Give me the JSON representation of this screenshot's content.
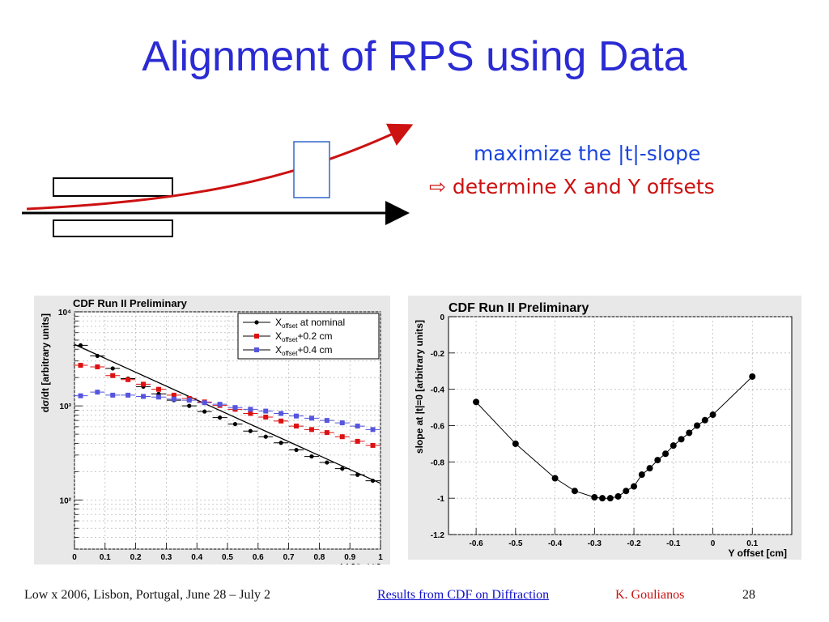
{
  "slide": {
    "title": "Alignment of RPS using Data",
    "note_line1": "maximize the |t|-slope",
    "note_arrow": "⇨",
    "note_line2": "determine X and Y offsets"
  },
  "footer": {
    "conference": "Low x 2006, Lisbon, Portugal, June 28 – July 2",
    "link": "Results from CDF on Diffraction",
    "author": "K. Goulianos",
    "page": "28"
  },
  "colors": {
    "title": "#2b2bd4",
    "note1": "#1a44dd",
    "note2": "#cc1111",
    "track": "#cc1111",
    "series_nominal": "#000000",
    "series_02": "#dd1111",
    "series_04": "#5555dd"
  },
  "chart_data": [
    {
      "type": "line",
      "title": "CDF Run II Preliminary",
      "xlabel": "|t| [GeV²]",
      "ylabel": "dσ/dt [arbitrary units]",
      "xlim": [
        0,
        1
      ],
      "ylim": [
        30,
        10000
      ],
      "yscale": "log",
      "xticks": [
        0,
        0.1,
        0.2,
        0.3,
        0.4,
        0.5,
        0.6,
        0.7,
        0.8,
        0.9,
        1
      ],
      "yticks": [
        {
          "value": 10000,
          "label": "10⁴"
        },
        {
          "value": 1000,
          "label": "10³"
        },
        {
          "value": 100,
          "label": "10²"
        }
      ],
      "grid": true,
      "legend_position": "top-right",
      "series": [
        {
          "name": "X_offset at nominal",
          "legend_main": "X",
          "legend_sub": "offset",
          "legend_rest": " at nominal",
          "color": "#000000",
          "marker": "circle",
          "x": [
            0.02,
            0.075,
            0.125,
            0.175,
            0.225,
            0.275,
            0.325,
            0.375,
            0.425,
            0.475,
            0.525,
            0.575,
            0.625,
            0.675,
            0.725,
            0.775,
            0.825,
            0.875,
            0.925,
            0.975
          ],
          "y": [
            4400,
            3400,
            2500,
            1950,
            1600,
            1340,
            1150,
            1000,
            870,
            750,
            640,
            540,
            470,
            405,
            340,
            290,
            250,
            215,
            185,
            160
          ],
          "fit_start": 4500,
          "fit_end": 150
        },
        {
          "name": "X_offset+0.2 cm",
          "legend_main": "X",
          "legend_sub": "offset",
          "legend_rest": "+0.2 cm",
          "color": "#dd1111",
          "marker": "square",
          "x": [
            0.02,
            0.075,
            0.125,
            0.175,
            0.225,
            0.275,
            0.325,
            0.375,
            0.425,
            0.475,
            0.525,
            0.575,
            0.625,
            0.675,
            0.725,
            0.775,
            0.825,
            0.875,
            0.925,
            0.975
          ],
          "y": [
            2700,
            2600,
            2100,
            1900,
            1700,
            1500,
            1300,
            1200,
            1100,
            1010,
            920,
            830,
            760,
            690,
            610,
            560,
            520,
            470,
            420,
            380
          ]
        },
        {
          "name": "X_offset+0.4 cm",
          "legend_main": "X",
          "legend_sub": "offset",
          "legend_rest": "+0.4 cm",
          "color": "#5555dd",
          "marker": "square",
          "x": [
            0.02,
            0.075,
            0.125,
            0.175,
            0.225,
            0.275,
            0.325,
            0.375,
            0.425,
            0.475,
            0.525,
            0.575,
            0.625,
            0.675,
            0.725,
            0.775,
            0.825,
            0.875,
            0.925,
            0.975
          ],
          "y": [
            1280,
            1400,
            1300,
            1300,
            1260,
            1240,
            1180,
            1150,
            1080,
            1040,
            960,
            920,
            880,
            830,
            780,
            740,
            700,
            660,
            610,
            560
          ]
        }
      ]
    },
    {
      "type": "line",
      "title": "CDF Run II Preliminary",
      "xlabel": "Y offset [cm]",
      "ylabel": "slope at |t|=0 [arbitrary units]",
      "xlim": [
        -0.67,
        0.2
      ],
      "ylim": [
        -1.2,
        0
      ],
      "xticks": [
        -0.6,
        -0.5,
        -0.4,
        -0.3,
        -0.2,
        -0.1,
        0,
        0.1
      ],
      "yticks": [
        0,
        -0.2,
        -0.4,
        -0.6,
        -0.8,
        -1,
        -1.2
      ],
      "grid": true,
      "series": [
        {
          "color": "#000000",
          "marker": "circle",
          "x": [
            -0.6,
            -0.5,
            -0.4,
            -0.35,
            -0.3,
            -0.28,
            -0.26,
            -0.24,
            -0.22,
            -0.2,
            -0.18,
            -0.16,
            -0.14,
            -0.12,
            -0.1,
            -0.08,
            -0.06,
            -0.04,
            -0.02,
            0,
            0.1
          ],
          "y": [
            -0.47,
            -0.7,
            -0.89,
            -0.96,
            -0.995,
            -1.0,
            -1.0,
            -0.99,
            -0.96,
            -0.935,
            -0.87,
            -0.835,
            -0.79,
            -0.755,
            -0.71,
            -0.675,
            -0.64,
            -0.6,
            -0.57,
            -0.54,
            -0.33
          ]
        }
      ]
    }
  ]
}
